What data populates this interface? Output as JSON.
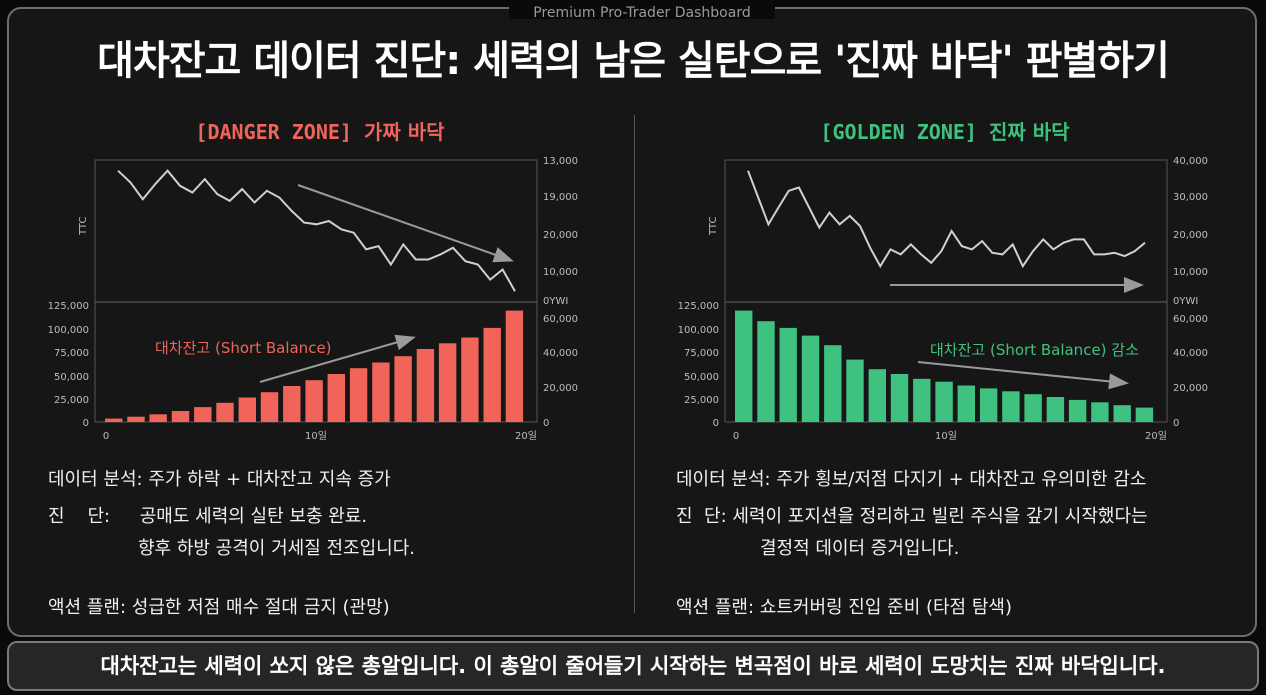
{
  "frame_label": "Premium Pro-Trader Dashboard",
  "title": "대차잔고 데이터 진단: 세력의 남은 실탄으로 '진짜 바닥' 판별하기",
  "colors": {
    "danger": "#f0645a",
    "golden": "#3fc27f",
    "line": "#d0d0d0",
    "arrow": "#9a9a9a"
  },
  "left": {
    "zone_tag": "[DANGER ZONE]",
    "zone_name": "가짜 바닥",
    "bar_annotation": "대차잔고 (Short Balance)",
    "analysis_label": "데이터 분석:",
    "analysis_text": "주가 하락 + 대차잔고 지속 증가",
    "diagnosis_label": "진    단:",
    "diagnosis_line1": "공매도 세력의 실탄 보충 완료.",
    "diagnosis_line2": "향후 하방 공격이 거세질 전조입니다.",
    "action_label": "액션 플랜:",
    "action_text": "성급한 저점 매수 절대 금지 (관망)"
  },
  "right": {
    "zone_tag": "[GOLDEN ZONE]",
    "zone_name": "진짜 바닥",
    "bar_annotation": "대차잔고 (Short Balance) 감소",
    "analysis_label": "데이터 분석:",
    "analysis_text": "주가 횡보/저점 다지기 + 대차잔고 유의미한 감소",
    "diagnosis_label": "진  단:",
    "diagnosis_line1": "세력이 포지션을 정리하고 빌린 주식을 갚기 시작했다는",
    "diagnosis_line2": "결정적 데이터 증거입니다.",
    "action_label": "액션 플랜:",
    "action_text": "쇼트커버링 진입 준비 (타점 탐색)"
  },
  "footer": "대차잔고는 세력이 쏘지 않은 총알입니다. 이 총알이 줄어들기 시작하는 변곡점이 바로 세력이 도망치는 진짜 바닥입니다.",
  "chart_data": [
    {
      "type": "line+bar",
      "ylabel": "TTC",
      "x_ticks": [
        "0",
        "10일",
        "20일"
      ],
      "price_axis_ticks": [
        "13,000",
        "19,000",
        "20,000",
        "10,000",
        "0YWI"
      ],
      "bar_left_axis_ticks": [
        "125,000",
        "100,000",
        "75,000",
        "50,000",
        "25,000",
        "0"
      ],
      "bar_right_axis_ticks": [
        "60,000",
        "40,000",
        "20,000",
        "0"
      ],
      "bar_ylim": [
        0,
        125000
      ],
      "price_ylim": [
        0,
        40000
      ],
      "price_series": [
        38000,
        34500,
        29500,
        34000,
        38000,
        33500,
        31500,
        35500,
        31000,
        29000,
        32500,
        28500,
        32000,
        30000,
        26000,
        22500,
        22000,
        23000,
        20500,
        19500,
        14500,
        15500,
        10000,
        16000,
        11500,
        11500,
        13000,
        15000,
        11000,
        10000,
        5500,
        8500,
        2000
      ],
      "bar_values": [
        3500,
        5500,
        8000,
        11500,
        15500,
        20000,
        25500,
        31000,
        37500,
        43500,
        50000,
        56000,
        62000,
        68500,
        76000,
        82000,
        88000,
        98000,
        116000
      ]
    },
    {
      "type": "line+bar",
      "ylabel": "TTC",
      "x_ticks": [
        "0",
        "10일",
        "20일"
      ],
      "price_axis_ticks": [
        "40,000",
        "30,000",
        "20,000",
        "10,000",
        "0YWI"
      ],
      "bar_left_axis_ticks": [
        "125,000",
        "100,000",
        "75,000",
        "50,000",
        "25,000",
        "0"
      ],
      "bar_right_axis_ticks": [
        "60,000",
        "40,000",
        "20,000",
        "0"
      ],
      "bar_ylim": [
        0,
        125000
      ],
      "price_ylim": [
        0,
        40000
      ],
      "price_series": [
        38000,
        30000,
        22000,
        27000,
        32000,
        33000,
        27000,
        21000,
        25500,
        22000,
        24500,
        21500,
        15000,
        9500,
        14500,
        13000,
        16000,
        13000,
        10500,
        14000,
        20000,
        15500,
        14500,
        17000,
        13500,
        13000,
        16000,
        9500,
        14000,
        17500,
        14500,
        16500,
        17500,
        17500,
        13000,
        13000,
        13500,
        12500,
        14000,
        16500
      ],
      "bar_values": [
        116000,
        105000,
        98000,
        90000,
        80000,
        65000,
        55000,
        50000,
        45000,
        42000,
        38000,
        35000,
        32000,
        29000,
        26000,
        23000,
        20500,
        17500,
        15000
      ]
    }
  ]
}
